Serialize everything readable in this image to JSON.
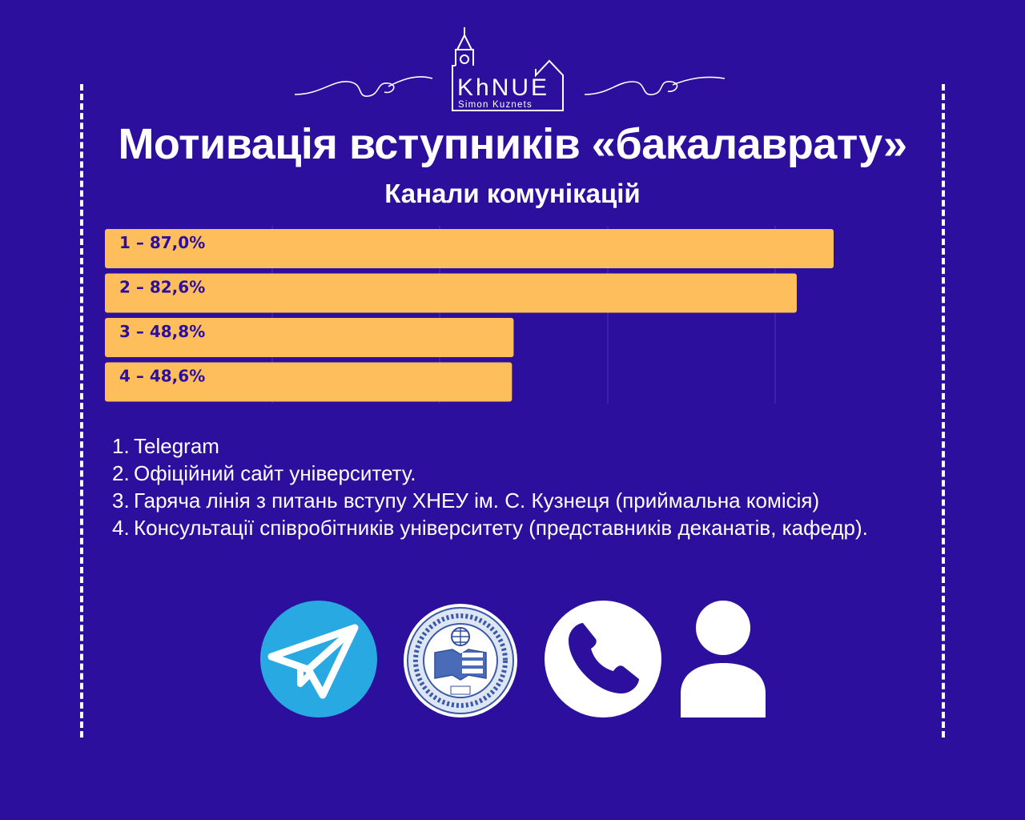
{
  "logo": {
    "mark": "KhNUE",
    "caption": "Simon Kuznets"
  },
  "title": "Мотивація вступників «бакалаврату»",
  "subtitle": "Канали комунікацій",
  "chart_data": {
    "type": "bar",
    "orientation": "horizontal",
    "categories": [
      "1",
      "2",
      "3",
      "4"
    ],
    "values": [
      87.0,
      82.6,
      48.8,
      48.6
    ],
    "data_labels": [
      "1 – 87,0%",
      "2 – 82,6%",
      "3 – 48,8%",
      "4 – 48,6%"
    ],
    "xlim": [
      0,
      100
    ],
    "grid": true,
    "bar_color": "#ffbe5c",
    "label_color": "#2d0f9e"
  },
  "legend": [
    {
      "num": "1.",
      "text": "Telegram"
    },
    {
      "num": "2.",
      "text": "Офіційний сайт університету."
    },
    {
      "num": "3.",
      "text": "Гаряча лінія з питань вступу ХНЕУ ім. С. Кузнеця (приймальна комісія)"
    },
    {
      "num": "4.",
      "text": "Консультації співробітників університету (представників деканатів, кафедр)."
    }
  ],
  "icons": [
    "telegram-icon",
    "university-seal-icon",
    "phone-icon",
    "person-icon"
  ],
  "colors": {
    "background": "#2d0f9e",
    "bar": "#ffbe5c",
    "telegram": "#29a9e1",
    "text": "#ffffff"
  }
}
